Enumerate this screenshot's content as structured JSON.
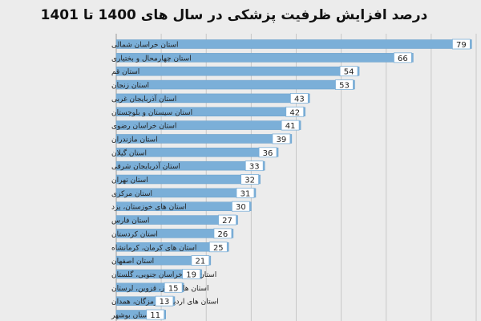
{
  "chart_data": {
    "type": "bar",
    "orientation": "horizontal",
    "title": "درصد افزایش ظرفیت پزشکی در سال های 1400 تا 1401",
    "categories": [
      "استان خراسان شمالی",
      "استان چهارمحال و بختیاری",
      "استان قم",
      "استان زنجان",
      "استان آذربایجان غربی",
      "استان سیستان و بلوچستان",
      "استان خراسان رضوی",
      "استان مازندران",
      "استان گیلان",
      "استان آذربایجان شرقی",
      "استان تهران",
      "استان مرکزی",
      "استان های خوزستان، یزد",
      "استان فارس",
      "استان کردستان",
      "استان های کرمان، کرمانشاه",
      "استان اصفهان",
      "استان های خراسان جنوبی، گلستان",
      "استان های البرز، قزوین، لرستان",
      "استان های اردبیل، هرمزگان، همدان",
      "استان بوشهر"
    ],
    "values": [
      79,
      66,
      54,
      53,
      43,
      42,
      41,
      39,
      36,
      33,
      32,
      31,
      30,
      27,
      26,
      25,
      21,
      19,
      15,
      13,
      11
    ],
    "xlim": [
      0,
      80
    ],
    "grid": true,
    "legend": "none",
    "colors": {
      "bar": "#7bafd8",
      "bar_stroke": "#6a9fca",
      "label_box": "#ffffff",
      "label_box_stroke": "#7bafd8",
      "grid": "#c8c8c8",
      "text": "#222222",
      "background": "#ececec"
    }
  }
}
